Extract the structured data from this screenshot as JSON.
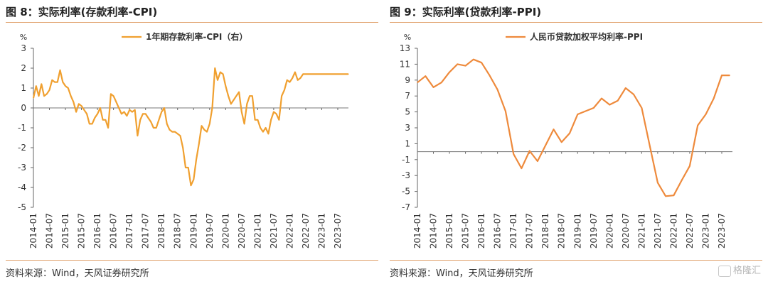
{
  "left": {
    "title": "图 8：实际利率(存款利率-CPI)",
    "source": "资料来源：Wind，天风证券研究所",
    "chart_data": {
      "type": "line",
      "unit_label": "%",
      "y_ticks": [
        3,
        2,
        1,
        0,
        -1,
        -2,
        -3,
        -4,
        -5
      ],
      "ylim": [
        -5,
        3
      ],
      "x_tick_labels": [
        "2014-01",
        "2014-07",
        "2015-01",
        "2015-07",
        "2016-01",
        "2016-07",
        "2017-01",
        "2017-07",
        "2018-01",
        "2018-07",
        "2019-01",
        "2019-07",
        "2020-01",
        "2020-07",
        "2021-01",
        "2021-07",
        "2022-01",
        "2022-07",
        "2023-01",
        "2023-07"
      ],
      "x_range_months": [
        0,
        118
      ],
      "series": [
        {
          "name": "1年期存款利率-CPI（右）",
          "color": "#f0a030",
          "x": [
            0,
            1,
            2,
            3,
            4,
            5,
            6,
            7,
            8,
            9,
            10,
            11,
            12,
            13,
            14,
            15,
            16,
            17,
            18,
            19,
            20,
            21,
            22,
            23,
            24,
            25,
            26,
            27,
            28,
            29,
            30,
            31,
            32,
            33,
            34,
            35,
            36,
            37,
            38,
            39,
            40,
            41,
            42,
            43,
            44,
            45,
            46,
            47,
            48,
            49,
            50,
            51,
            52,
            53,
            54,
            55,
            56,
            57,
            58,
            59,
            60,
            61,
            62,
            63,
            64,
            65,
            66,
            67,
            68,
            69,
            70,
            71,
            72,
            73,
            74,
            75,
            76,
            77,
            78,
            79,
            80,
            81,
            82,
            83,
            84,
            85,
            86,
            87,
            88,
            89,
            90,
            91,
            92,
            93,
            94,
            95,
            96,
            97,
            98,
            99,
            100,
            101,
            102,
            103,
            104,
            105,
            106,
            107,
            108,
            109,
            110,
            111,
            112,
            113,
            114,
            115,
            116,
            117,
            118
          ],
          "y": [
            0.5,
            1.1,
            0.6,
            1.2,
            0.6,
            0.7,
            0.9,
            1.4,
            1.3,
            1.3,
            1.9,
            1.3,
            1.1,
            1.0,
            0.6,
            0.3,
            -0.2,
            0.2,
            0.1,
            -0.1,
            -0.3,
            -0.8,
            -0.8,
            -0.5,
            -0.3,
            0.0,
            -0.6,
            -0.6,
            -1.0,
            0.7,
            0.6,
            0.3,
            0.0,
            -0.3,
            -0.2,
            -0.4,
            -0.1,
            -0.2,
            -0.1,
            -1.4,
            -0.6,
            -0.3,
            -0.3,
            -0.5,
            -0.7,
            -1.0,
            -1.0,
            -0.6,
            -0.2,
            0.0,
            -0.8,
            -1.1,
            -1.2,
            -1.2,
            -1.3,
            -1.4,
            -2.0,
            -3.0,
            -3.0,
            -3.9,
            -3.6,
            -2.6,
            -1.8,
            -0.9,
            -1.1,
            -1.2,
            -0.8,
            0.0,
            2.0,
            1.4,
            1.8,
            1.7,
            1.1,
            0.6,
            0.2,
            0.4,
            0.6,
            0.8,
            -0.2,
            -0.8,
            0.2,
            0.6,
            0.6,
            -0.6,
            -0.6,
            -1.0,
            -1.2,
            -1.0,
            -1.3,
            -0.6,
            -0.2,
            -0.3,
            -0.6,
            0.6,
            0.9,
            1.4,
            1.3,
            1.5,
            1.8,
            1.4,
            1.5,
            1.7,
            1.7,
            1.7,
            1.7,
            1.7,
            1.7,
            1.7,
            1.7,
            1.7,
            1.7,
            1.7,
            1.7,
            1.7,
            1.7,
            1.7,
            1.7,
            1.7,
            1.7
          ]
        }
      ]
    }
  },
  "right": {
    "title": "图 9：实际利率(贷款利率-PPI)",
    "source": "资料来源：Wind，天风证券研究所",
    "watermark": "格隆汇",
    "chart_data": {
      "type": "line",
      "unit_label": "%",
      "y_ticks": [
        13,
        11,
        9,
        7,
        5,
        3,
        1,
        -1,
        -3,
        -5,
        -7
      ],
      "ylim": [
        -7,
        13
      ],
      "x_tick_labels": [
        "2014-01",
        "2014-07",
        "2015-01",
        "2015-07",
        "2016-01",
        "2016-07",
        "2017-01",
        "2017-07",
        "2018-01",
        "2018-07",
        "2019-01",
        "2019-07",
        "2020-01",
        "2020-07",
        "2021-01",
        "2021-07",
        "2022-01",
        "2022-07",
        "2023-01",
        "2023-07"
      ],
      "x_range_months": [
        0,
        118
      ],
      "series": [
        {
          "name": "人民币贷款加权平均利率-PPI",
          "color": "#ee8a3c",
          "x": [
            0,
            3,
            6,
            9,
            12,
            15,
            18,
            21,
            24,
            27,
            30,
            33,
            36,
            39,
            42,
            45,
            48,
            51,
            54,
            57,
            60,
            63,
            66,
            69,
            72,
            75,
            78,
            81,
            84,
            87,
            90,
            93,
            96,
            99,
            102,
            105,
            108,
            111,
            114,
            117
          ],
          "y": [
            8.7,
            9.5,
            8.1,
            8.7,
            10.0,
            11.0,
            10.8,
            11.6,
            11.2,
            9.6,
            7.8,
            5.1,
            -0.3,
            -2.1,
            0.1,
            -1.2,
            0.8,
            2.8,
            1.2,
            2.3,
            4.7,
            5.1,
            5.5,
            6.7,
            5.9,
            6.4,
            8.0,
            7.2,
            5.5,
            0.8,
            -3.9,
            -5.6,
            -5.5,
            -3.6,
            -1.8,
            3.3,
            4.7,
            6.7,
            9.6,
            9.6
          ]
        }
      ]
    }
  }
}
